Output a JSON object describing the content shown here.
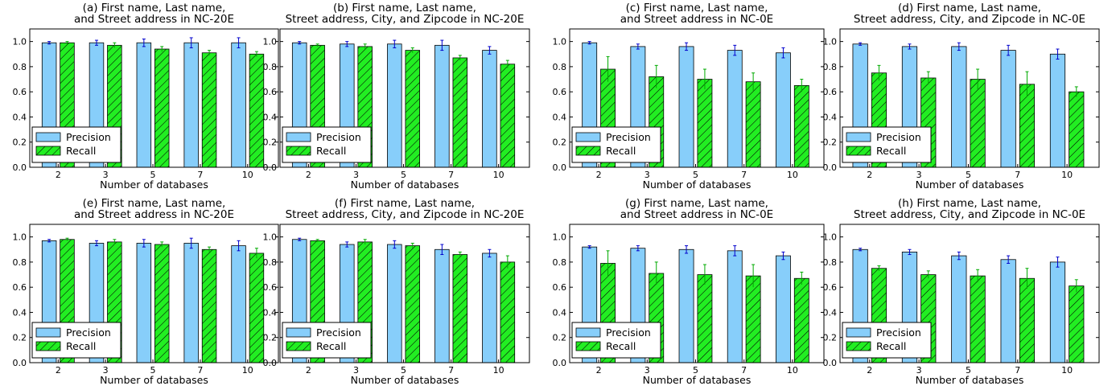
{
  "chart_data": [
    {
      "type": "bar",
      "title": "(a) First name, Last name,\nand Street address in NC-20E",
      "xlabel": "Number of databases",
      "ylabel": "",
      "ylim": [
        0,
        1.1
      ],
      "yticks": [
        "0.0",
        "0.2",
        "0.4",
        "0.6",
        "0.8",
        "1.0"
      ],
      "categories": [
        "2",
        "3",
        "5",
        "7",
        "10"
      ],
      "legend": "lower-left",
      "series": [
        {
          "name": "Precision",
          "values": [
            0.99,
            0.99,
            0.99,
            0.99,
            0.99
          ],
          "errors": [
            0.01,
            0.02,
            0.03,
            0.04,
            0.04
          ]
        },
        {
          "name": "Recall",
          "values": [
            0.99,
            0.97,
            0.94,
            0.91,
            0.9
          ],
          "errors": [
            0.01,
            0.02,
            0.02,
            0.02,
            0.02
          ]
        }
      ]
    },
    {
      "type": "bar",
      "title": "(b) First name, Last name,\nStreet address, City, and Zipcode in NC-20E",
      "xlabel": "Number of databases",
      "ylabel": "",
      "ylim": [
        0,
        1.1
      ],
      "yticks": [
        "0.0",
        "0.2",
        "0.4",
        "0.6",
        "0.8",
        "1.0"
      ],
      "categories": [
        "2",
        "3",
        "5",
        "7",
        "10"
      ],
      "legend": "lower-left",
      "series": [
        {
          "name": "Precision",
          "values": [
            0.99,
            0.98,
            0.98,
            0.97,
            0.93
          ],
          "errors": [
            0.01,
            0.02,
            0.03,
            0.04,
            0.03
          ]
        },
        {
          "name": "Recall",
          "values": [
            0.97,
            0.96,
            0.93,
            0.87,
            0.82
          ],
          "errors": [
            0.01,
            0.02,
            0.02,
            0.02,
            0.03
          ]
        }
      ]
    },
    {
      "type": "bar",
      "title": "(c) First name, Last name,\nand Street address in NC-0E",
      "xlabel": "Number of databases",
      "ylabel": "",
      "ylim": [
        0,
        1.1
      ],
      "yticks": [
        "0.0",
        "0.2",
        "0.4",
        "0.6",
        "0.8",
        "1.0"
      ],
      "categories": [
        "2",
        "3",
        "5",
        "7",
        "10"
      ],
      "legend": "lower-left",
      "series": [
        {
          "name": "Precision",
          "values": [
            0.99,
            0.96,
            0.96,
            0.93,
            0.91
          ],
          "errors": [
            0.01,
            0.02,
            0.03,
            0.04,
            0.04
          ]
        },
        {
          "name": "Recall",
          "values": [
            0.78,
            0.72,
            0.7,
            0.68,
            0.65
          ],
          "errors": [
            0.1,
            0.09,
            0.08,
            0.07,
            0.05
          ]
        }
      ]
    },
    {
      "type": "bar",
      "title": "(d) First name, Last name,\nStreet address, City, and Zipcode in NC-0E",
      "xlabel": "Number of databases",
      "ylabel": "",
      "ylim": [
        0,
        1.1
      ],
      "yticks": [
        "0.0",
        "0.2",
        "0.4",
        "0.6",
        "0.8",
        "1.0"
      ],
      "categories": [
        "2",
        "3",
        "5",
        "7",
        "10"
      ],
      "legend": "lower-left",
      "series": [
        {
          "name": "Precision",
          "values": [
            0.98,
            0.96,
            0.96,
            0.93,
            0.9
          ],
          "errors": [
            0.01,
            0.02,
            0.03,
            0.04,
            0.04
          ]
        },
        {
          "name": "Recall",
          "values": [
            0.75,
            0.71,
            0.7,
            0.66,
            0.6
          ],
          "errors": [
            0.06,
            0.05,
            0.08,
            0.1,
            0.04
          ]
        }
      ]
    },
    {
      "type": "bar",
      "title": "(e) First name, Last name,\nand Street address in NC-20E",
      "xlabel": "Number of databases",
      "ylabel": "",
      "ylim": [
        0,
        1.1
      ],
      "yticks": [
        "0.0",
        "0.2",
        "0.4",
        "0.6",
        "0.8",
        "1.0"
      ],
      "categories": [
        "2",
        "3",
        "5",
        "7",
        "10"
      ],
      "legend": "lower-left",
      "series": [
        {
          "name": "Precision",
          "values": [
            0.97,
            0.95,
            0.95,
            0.95,
            0.93
          ],
          "errors": [
            0.01,
            0.02,
            0.03,
            0.04,
            0.04
          ]
        },
        {
          "name": "Recall",
          "values": [
            0.98,
            0.96,
            0.94,
            0.9,
            0.87
          ],
          "errors": [
            0.01,
            0.02,
            0.02,
            0.02,
            0.04
          ]
        }
      ]
    },
    {
      "type": "bar",
      "title": "(f) First name, Last name,\nStreet address, City, and Zipcode in NC-20E",
      "xlabel": "Number of databases",
      "ylabel": "",
      "ylim": [
        0,
        1.1
      ],
      "yticks": [
        "0.0",
        "0.2",
        "0.4",
        "0.6",
        "0.8",
        "1.0"
      ],
      "categories": [
        "2",
        "3",
        "5",
        "7",
        "10"
      ],
      "legend": "lower-left",
      "series": [
        {
          "name": "Precision",
          "values": [
            0.98,
            0.94,
            0.94,
            0.9,
            0.87
          ],
          "errors": [
            0.01,
            0.02,
            0.03,
            0.04,
            0.03
          ]
        },
        {
          "name": "Recall",
          "values": [
            0.97,
            0.96,
            0.93,
            0.86,
            0.8
          ],
          "errors": [
            0.01,
            0.02,
            0.02,
            0.02,
            0.05
          ]
        }
      ]
    },
    {
      "type": "bar",
      "title": "(g) First name, Last name,\nand Street address in NC-0E",
      "xlabel": "Number of databases",
      "ylabel": "",
      "ylim": [
        0,
        1.1
      ],
      "yticks": [
        "0.0",
        "0.2",
        "0.4",
        "0.6",
        "0.8",
        "1.0"
      ],
      "categories": [
        "2",
        "3",
        "5",
        "7",
        "10"
      ],
      "legend": "lower-left",
      "series": [
        {
          "name": "Precision",
          "values": [
            0.92,
            0.91,
            0.9,
            0.89,
            0.85
          ],
          "errors": [
            0.01,
            0.02,
            0.03,
            0.04,
            0.03
          ]
        },
        {
          "name": "Recall",
          "values": [
            0.79,
            0.71,
            0.7,
            0.69,
            0.67
          ],
          "errors": [
            0.1,
            0.09,
            0.08,
            0.09,
            0.05
          ]
        }
      ]
    },
    {
      "type": "bar",
      "title": "(h) First name, Last name,\nStreet address, City, and Zipcode in NC-0E",
      "xlabel": "Number of databases",
      "ylabel": "",
      "ylim": [
        0,
        1.1
      ],
      "yticks": [
        "0.0",
        "0.2",
        "0.4",
        "0.6",
        "0.8",
        "1.0"
      ],
      "categories": [
        "2",
        "3",
        "5",
        "7",
        "10"
      ],
      "legend": "lower-left",
      "series": [
        {
          "name": "Precision",
          "values": [
            0.9,
            0.88,
            0.85,
            0.82,
            0.8
          ],
          "errors": [
            0.01,
            0.02,
            0.03,
            0.03,
            0.04
          ]
        },
        {
          "name": "Recall",
          "values": [
            0.75,
            0.7,
            0.69,
            0.67,
            0.61
          ],
          "errors": [
            0.02,
            0.03,
            0.05,
            0.08,
            0.05
          ]
        }
      ]
    }
  ],
  "colors": {
    "precision_fill": "#87cefa",
    "recall_fill": "#22ee22",
    "recall_hatch": "#000000",
    "precision_error": "#0000cc",
    "recall_error": "#00aa00",
    "axis": "#000000"
  }
}
